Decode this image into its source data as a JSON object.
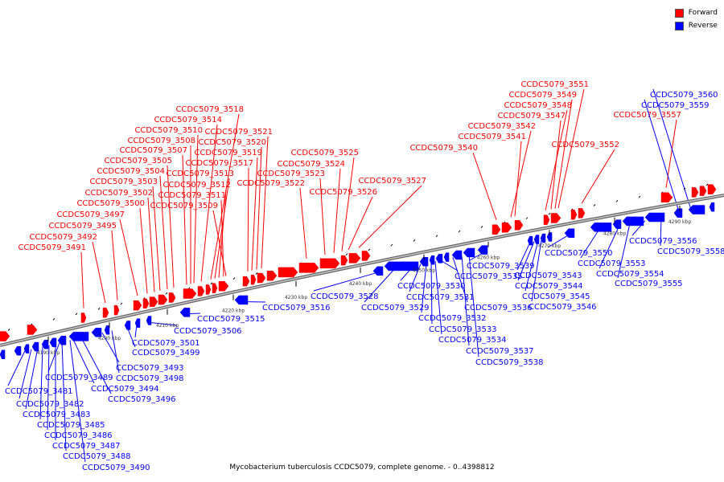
{
  "legend": {
    "forward": "Forward",
    "reverse": "Reverse"
  },
  "colors": {
    "forward": "#ff0000",
    "reverse": "#0000ff",
    "backbone": "#909090"
  },
  "caption": "Mycobacterium tuberculosis CCDC5079, complete genome. - 0..4398812",
  "ticks": [
    "4190 kbp",
    "4200 kbp",
    "4210 kbp",
    "4220 kbp",
    "4230 kbp",
    "4240 kbp",
    "4250 kbp",
    "4260 kbp",
    "4270 kbp",
    "4280 kbp",
    "4290 kbp"
  ],
  "genes_forward": [
    "CCDC5079_3491",
    "CCDC5079_3492",
    "CCDC5079_3495",
    "CCDC5079_3497",
    "CCDC5079_3500",
    "CCDC5079_3502",
    "CCDC5079_3503",
    "CCDC5079_3504",
    "CCDC5079_3505",
    "CCDC5079_3507",
    "CCDC5079_3508",
    "CCDC5079_3509",
    "CCDC5079_3510",
    "CCDC5079_3511",
    "CCDC5079_3512",
    "CCDC5079_3513",
    "CCDC5079_3514",
    "CCDC5079_3517",
    "CCDC5079_3518",
    "CCDC5079_3519",
    "CCDC5079_3520",
    "CCDC5079_3521",
    "CCDC5079_3522",
    "CCDC5079_3523",
    "CCDC5079_3524",
    "CCDC5079_3525",
    "CCDC5079_3526",
    "CCDC5079_3527",
    "CCDC5079_3540",
    "CCDC5079_3541",
    "CCDC5079_3542",
    "CCDC5079_3547",
    "CCDC5079_3548",
    "CCDC5079_3549",
    "CCDC5079_3551",
    "CCDC5079_3552",
    "CCDC5079_3557"
  ],
  "genes_reverse": [
    "CCDC5079_3481",
    "CCDC5079_3482",
    "CCDC5079_3483",
    "CCDC5079_3485",
    "CCDC5079_3486",
    "CCDC5079_3487",
    "CCDC5079_3488",
    "CCDC5079_3489",
    "CCDC5079_3490",
    "CCDC5079_3493",
    "CCDC5079_3494",
    "CCDC5079_3496",
    "CCDC5079_3498",
    "CCDC5079_3499",
    "CCDC5079_3501",
    "CCDC5079_3506",
    "CCDC5079_3515",
    "CCDC5079_3516",
    "CCDC5079_3528",
    "CCDC5079_3529",
    "CCDC5079_3530",
    "CCDC5079_3531",
    "CCDC5079_3532",
    "CCDC5079_3533",
    "CCDC5079_3534",
    "CCDC5079_3535",
    "CCDC5079_3536",
    "CCDC5079_3537",
    "CCDC5079_3538",
    "CCDC5079_3539",
    "CCDC5079_3543",
    "CCDC5079_3544",
    "CCDC5079_3545",
    "CCDC5079_3546",
    "CCDC5079_3550",
    "CCDC5079_3553",
    "CCDC5079_3554",
    "CCDC5079_3555",
    "CCDC5079_3556",
    "CCDC5079_3558",
    "CCDC5079_3559",
    "CCDC5079_3560"
  ]
}
